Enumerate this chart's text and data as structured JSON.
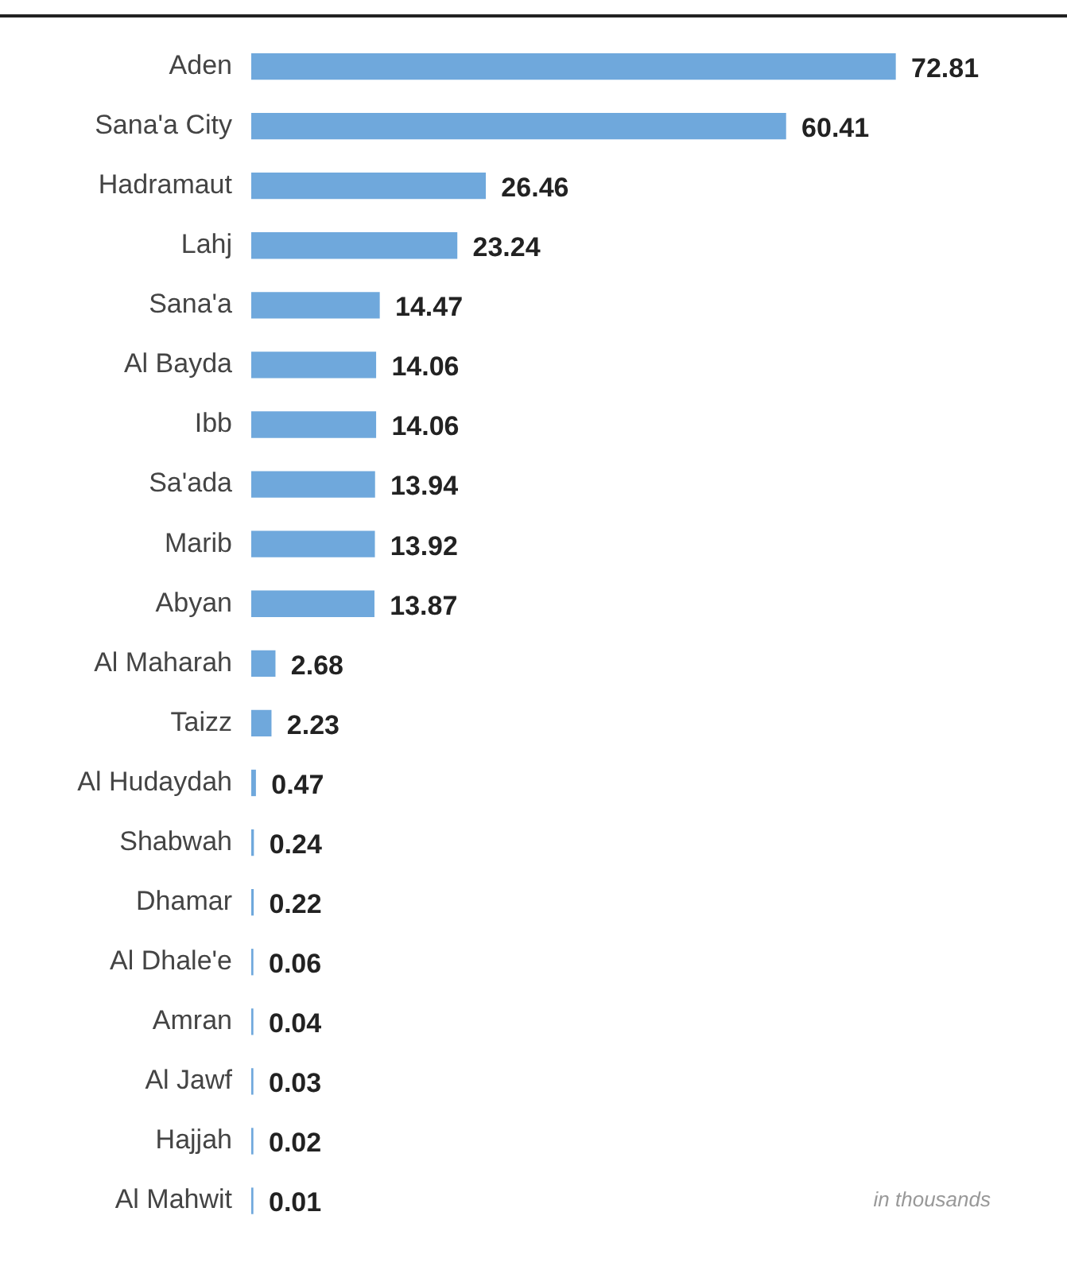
{
  "chart_data": {
    "type": "bar",
    "orientation": "horizontal",
    "categories": [
      "Aden",
      "Sana'a City",
      "Hadramaut",
      "Lahj",
      "Sana'a",
      "Al Bayda",
      "Ibb",
      "Sa'ada",
      "Marib",
      "Abyan",
      "Al Maharah",
      "Taizz",
      "Al Hudaydah",
      "Shabwah",
      "Dhamar",
      "Al Dhale'e",
      "Amran",
      "Al Jawf",
      "Hajjah",
      "Al Mahwit"
    ],
    "values": [
      72.81,
      60.41,
      26.46,
      23.24,
      14.47,
      14.06,
      14.06,
      13.94,
      13.92,
      13.87,
      2.68,
      2.23,
      0.47,
      0.24,
      0.22,
      0.06,
      0.04,
      0.03,
      0.02,
      0.01
    ],
    "color": "#6fa8dc",
    "tick_labels": "y",
    "data_labels": true,
    "annotations": [
      "in thousands"
    ]
  }
}
